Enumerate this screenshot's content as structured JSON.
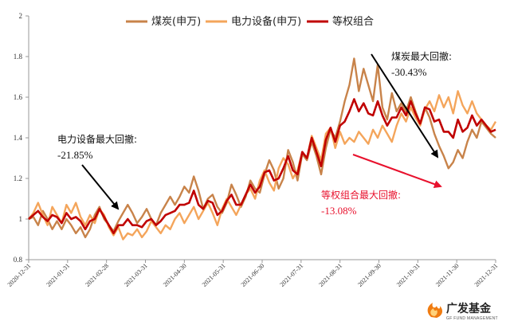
{
  "chart_data": {
    "type": "line",
    "title": "",
    "ylim": [
      0.8,
      2.0
    ],
    "yticks": [
      "0.8",
      "1",
      "1.2",
      "1.4",
      "1.6",
      "1.8",
      "2"
    ],
    "xticks": [
      "2020-12-31",
      "2021-01-31",
      "2021-02-28",
      "2021-03-31",
      "2021-04-30",
      "2021-05-31",
      "2021-06-30",
      "2021-07-31",
      "2021-08-31",
      "2021-09-30",
      "2021-10-31",
      "2021-11-30",
      "2021-12-31"
    ],
    "series": [
      {
        "name": "煤炭(申万)",
        "color": "#c8834a",
        "values": [
          1.0,
          1.01,
          0.97,
          1.04,
          1.0,
          0.95,
          0.99,
          0.95,
          1.0,
          0.97,
          0.93,
          0.96,
          0.91,
          0.95,
          1.02,
          1.06,
          1.0,
          0.97,
          0.94,
          0.99,
          1.03,
          1.07,
          1.03,
          0.98,
          1.01,
          1.05,
          1.0,
          0.97,
          1.03,
          1.07,
          1.11,
          1.07,
          1.11,
          1.16,
          1.13,
          1.21,
          1.14,
          1.05,
          1.1,
          1.12,
          1.06,
          1.03,
          1.08,
          1.17,
          1.12,
          1.06,
          1.11,
          1.19,
          1.15,
          1.13,
          1.22,
          1.29,
          1.24,
          1.15,
          1.2,
          1.34,
          1.28,
          1.19,
          1.32,
          1.29,
          1.38,
          1.31,
          1.22,
          1.35,
          1.44,
          1.4,
          1.48,
          1.58,
          1.66,
          1.79,
          1.63,
          1.74,
          1.66,
          1.58,
          1.76,
          1.55,
          1.49,
          1.62,
          1.53,
          1.57,
          1.53,
          1.6,
          1.53,
          1.47,
          1.55,
          1.5,
          1.42,
          1.36,
          1.31,
          1.25,
          1.28,
          1.34,
          1.3,
          1.38,
          1.44,
          1.4,
          1.48,
          1.45,
          1.42,
          1.4
        ]
      },
      {
        "name": "电力设备(申万)",
        "color": "#f4a55b",
        "values": [
          1.0,
          1.03,
          1.08,
          1.02,
          0.97,
          1.06,
          1.02,
          0.98,
          1.07,
          1.03,
          1.08,
          1.01,
          0.97,
          1.02,
          0.98,
          1.05,
          1.02,
          0.96,
          0.92,
          0.96,
          0.9,
          0.93,
          0.92,
          0.95,
          0.91,
          0.94,
          0.99,
          0.96,
          0.93,
          0.97,
          0.95,
          1.0,
          1.03,
          0.98,
          1.02,
          1.06,
          1.0,
          1.04,
          1.08,
          1.03,
          0.97,
          1.05,
          1.1,
          1.06,
          1.02,
          1.07,
          1.12,
          1.15,
          1.1,
          1.19,
          1.24,
          1.18,
          1.14,
          1.25,
          1.3,
          1.27,
          1.2,
          1.24,
          1.33,
          1.3,
          1.41,
          1.35,
          1.29,
          1.42,
          1.45,
          1.35,
          1.43,
          1.37,
          1.4,
          1.38,
          1.43,
          1.4,
          1.37,
          1.44,
          1.4,
          1.46,
          1.42,
          1.38,
          1.46,
          1.52,
          1.48,
          1.55,
          1.5,
          1.46,
          1.54,
          1.58,
          1.53,
          1.61,
          1.55,
          1.6,
          1.52,
          1.63,
          1.56,
          1.52,
          1.58,
          1.52,
          1.49,
          1.46,
          1.44,
          1.48
        ]
      },
      {
        "name": "等权组合",
        "color": "#c00000",
        "values": [
          1.0,
          1.02,
          1.04,
          1.01,
          0.99,
          1.02,
          1.01,
          0.98,
          1.03,
          1.0,
          1.01,
          0.99,
          0.95,
          0.99,
          1.0,
          1.05,
          1.01,
          0.97,
          0.93,
          0.97,
          0.97,
          1.0,
          0.97,
          0.97,
          0.96,
          0.99,
          1.0,
          0.97,
          0.99,
          1.02,
          1.03,
          1.04,
          1.07,
          1.07,
          1.08,
          1.14,
          1.07,
          1.05,
          1.09,
          1.08,
          1.02,
          1.04,
          1.09,
          1.12,
          1.07,
          1.07,
          1.12,
          1.17,
          1.13,
          1.16,
          1.23,
          1.24,
          1.19,
          1.2,
          1.25,
          1.31,
          1.24,
          1.22,
          1.33,
          1.3,
          1.4,
          1.33,
          1.26,
          1.39,
          1.45,
          1.38,
          1.46,
          1.48,
          1.53,
          1.59,
          1.53,
          1.57,
          1.52,
          1.51,
          1.58,
          1.51,
          1.46,
          1.5,
          1.5,
          1.55,
          1.51,
          1.58,
          1.52,
          1.47,
          1.55,
          1.54,
          1.48,
          1.49,
          1.43,
          1.43,
          1.4,
          1.49,
          1.43,
          1.45,
          1.51,
          1.46,
          1.49,
          1.46,
          1.43,
          1.44
        ]
      }
    ],
    "annotations": [
      {
        "label": "电力设备最大回撤:",
        "value": "-21.85%",
        "color": "#111111",
        "arrow": "black"
      },
      {
        "label": "煤炭最大回撤:",
        "value": "-30.43%",
        "color": "#111111",
        "arrow": "black"
      },
      {
        "label": "等权组合最大回撤:",
        "value": "-13.08%",
        "color": "#e8112d",
        "arrow": "red"
      }
    ]
  },
  "logo": {
    "name_cn": "广发基金",
    "name_en": "GF FUND MANAGEMENT",
    "color": "#f07c12"
  }
}
